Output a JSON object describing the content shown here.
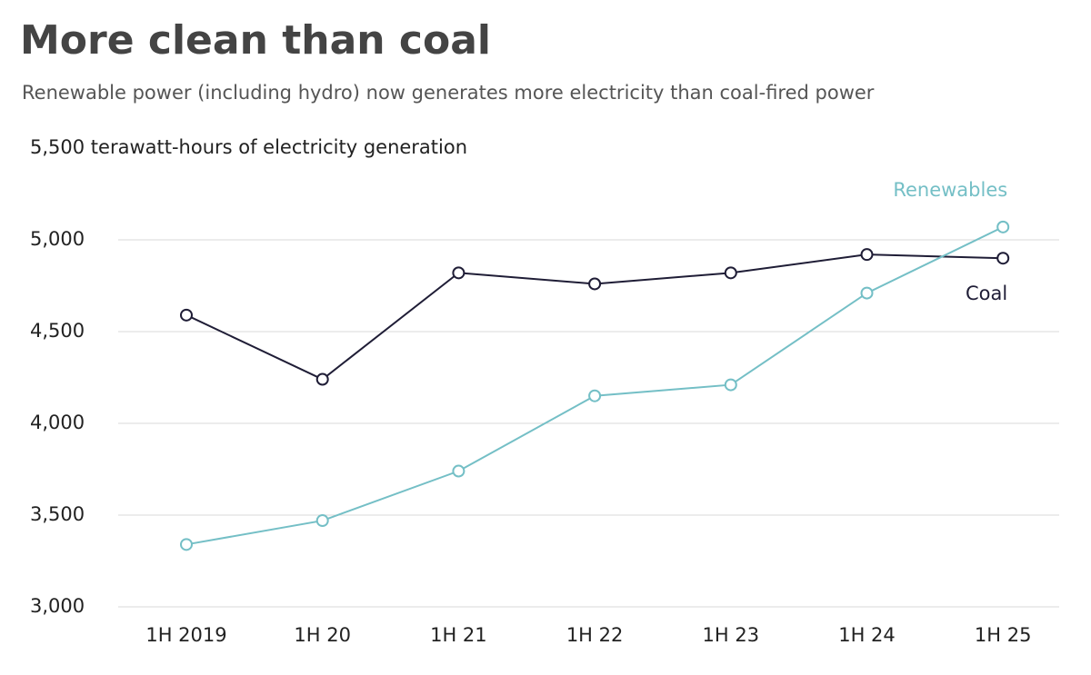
{
  "chart_data": {
    "type": "line",
    "title": "More clean than coal",
    "subtitle": "Renewable power (including hydro) now generates more electricity than coal-fired power",
    "categories": [
      "1H 2019",
      "1H 20",
      "1H 21",
      "1H 22",
      "1H 23",
      "1H 24",
      "1H 25"
    ],
    "series": [
      {
        "name": "Coal",
        "color": "#1f1d36",
        "values": [
          4590,
          4240,
          4820,
          4760,
          4820,
          4920,
          4900
        ]
      },
      {
        "name": "Renewables",
        "color": "#74bfc6",
        "values": [
          3340,
          3470,
          3740,
          4150,
          4210,
          4710,
          5070
        ]
      }
    ],
    "ylim": [
      3000,
      5500
    ],
    "yticks": [
      {
        "value": 3000,
        "label": "3,000"
      },
      {
        "value": 3500,
        "label": "3,500"
      },
      {
        "value": 4000,
        "label": "4,000"
      },
      {
        "value": 4500,
        "label": "4,500"
      },
      {
        "value": 5000,
        "label": "5,000"
      },
      {
        "value": 5500,
        "label": "5,500 terawatt-hours of electricity generation"
      }
    ],
    "grid": true
  }
}
